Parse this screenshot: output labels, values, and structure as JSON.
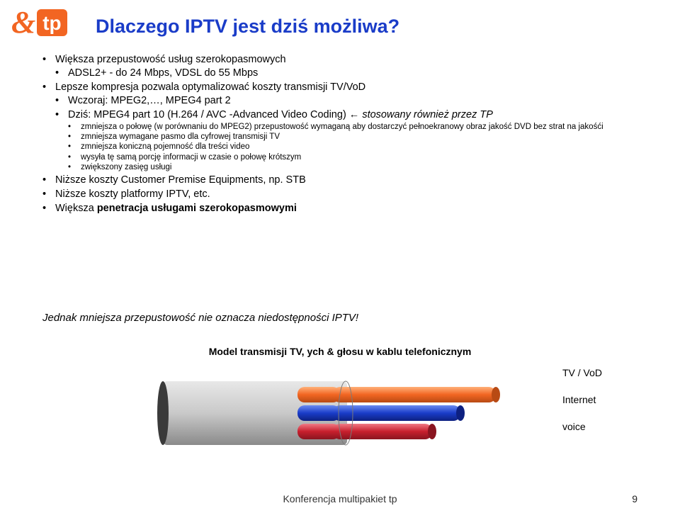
{
  "logo": {
    "amp": "&",
    "tp": "tp"
  },
  "title": "Dlaczego IPTV jest dziś możliwa?",
  "bullets": [
    {
      "text": "Większa przepustowość usług szerokopasmowych",
      "children": [
        {
          "text": "ADSL2+ - do 24 Mbps, VDSL do 55 Mbps"
        }
      ]
    },
    {
      "html": "Lepsze kompresja pozwala optymalizować koszty transmisji TV/VoD",
      "children": [
        {
          "text": "Wczoraj: MPEG2,…, MPEG4 part 2"
        },
        {
          "html": "Dziś: MPEG4 part 10 (H.264 / AVC -Advanced Video Coding) <span class=\"arrow\">←</span> <span class=\"italic\">stosowany również przez TP</span>",
          "children": [
            {
              "text": "zmniejsza o połowę (w porównaniu do MPEG2) przepustowość wymaganą aby dostarczyć pełnoekranowy obraz jakość DVD bez strat na jakośći"
            },
            {
              "text": "zmniejsza wymagane pasmo dla cyfrowej transmisji TV"
            },
            {
              "text": "zmniejsza koniczną pojemność dla treści video"
            },
            {
              "text": "wysyła tę samą porcję informacji w czasie o połowę krótszym"
            },
            {
              "text": "zwiększony zasięg usługi"
            }
          ]
        }
      ]
    },
    {
      "text": "Niższe koszty Customer Premise Equipments, np. STB"
    },
    {
      "text": "Niższe koszty platformy IPTV, etc."
    },
    {
      "html": "Większa <span class=\"bold\">penetracja usługami szerokopasmowymi</span>"
    }
  ],
  "footer_note": "Jednak mniejsza przepustowość nie oznacza niedostępności IPTV!",
  "diagram": {
    "title": "Model transmisji TV, ych & głosu w kablu telefonicznym",
    "labels": [
      "TV / VoD",
      "Internet",
      "voice"
    ],
    "colors": {
      "sheath": "#c9c9c9",
      "sheath_shadow": "#8a8a8a",
      "tv_vod": "#f26522",
      "internet": "#1a3cc8",
      "voice": "#c71f2d",
      "end_cap": "#3a3a3a"
    }
  },
  "footer": {
    "center": "Konferencja multipakiet tp",
    "page": "9"
  }
}
